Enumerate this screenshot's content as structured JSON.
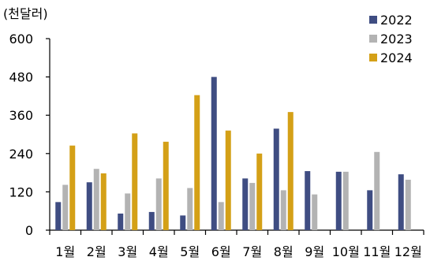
{
  "chart_data": {
    "type": "bar",
    "unit_label": "(천달러)",
    "title": "",
    "xlabel": "",
    "ylabel": "",
    "ylim": [
      0,
      600
    ],
    "yticks": [
      0,
      120,
      240,
      360,
      480,
      600
    ],
    "grid": false,
    "legend_position": "top-right",
    "categories": [
      "1월",
      "2월",
      "3월",
      "4월",
      "5월",
      "6월",
      "7월",
      "8월",
      "9월",
      "10월",
      "11월",
      "12월"
    ],
    "series": [
      {
        "name": "2022",
        "color": "#3f4d82",
        "values": [
          88,
          150,
          52,
          57,
          46,
          480,
          162,
          318,
          185,
          183,
          125,
          175
        ]
      },
      {
        "name": "2023",
        "color": "#b3b3b3",
        "values": [
          142,
          192,
          115,
          162,
          132,
          88,
          148,
          125,
          112,
          183,
          245,
          158
        ]
      },
      {
        "name": "2024",
        "color": "#d4a017",
        "values": [
          265,
          178,
          303,
          277,
          423,
          312,
          240,
          370,
          null,
          null,
          null,
          null
        ]
      }
    ]
  }
}
